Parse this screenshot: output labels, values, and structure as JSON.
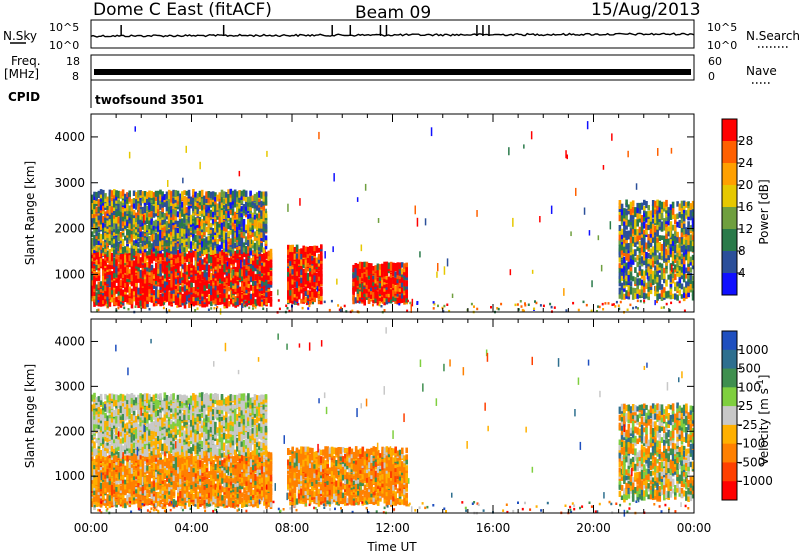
{
  "header": {
    "station": "Dome C East (fitACF)",
    "beam": "Beam 09",
    "date": "15/Aug/2013"
  },
  "top_panels": {
    "nsky_label": "N.Sky",
    "nsky_ticks": [
      "10^5",
      "10^0"
    ],
    "nsearch_label": "N.Search",
    "nsearch_ticks": [
      "10^5",
      "10^0"
    ],
    "freq_label": "Freq.",
    "freq_unit": "[MHz]",
    "freq_ticks": [
      "18",
      "8"
    ],
    "nave_label": "Nave",
    "nave_ticks": [
      "60",
      "0"
    ],
    "cpid_label": "CPID",
    "cpid_value": "twofsound 3501"
  },
  "chart_data": [
    {
      "type": "heatmap",
      "panel": "power",
      "ylabel": "Slant Range [km]",
      "xlabel": "Time UT",
      "x_ticks": [
        "00:00",
        "04:00",
        "08:00",
        "12:00",
        "16:00",
        "20:00",
        "00:00"
      ],
      "xlim_hours": [
        0,
        24
      ],
      "y_ticks": [
        1000,
        2000,
        3000,
        4000
      ],
      "ylim_km": [
        180,
        4500
      ],
      "colorbar": {
        "label": "Power [dB]",
        "tick_labels": [
          "28",
          "24",
          "20",
          "16",
          "12",
          "8",
          "4"
        ],
        "colors": [
          "#ff0000",
          "#ff6000",
          "#ffa000",
          "#e6c800",
          "#6f9f3f",
          "#2a7a4a",
          "#2b4f9a",
          "#1010ff"
        ]
      },
      "echo_regions": [
        {
          "t_start": 0.0,
          "t_end": 7.2,
          "r_min": 350,
          "r_max": 1500,
          "dominant": "high-power (24-28 dB)"
        },
        {
          "t_start": 0.0,
          "t_end": 7.0,
          "r_min": 1500,
          "r_max": 2800,
          "dominant": "mixed (4-20 dB)"
        },
        {
          "t_start": 7.8,
          "t_end": 9.2,
          "r_min": 400,
          "r_max": 1600,
          "dominant": "high-power (24-28 dB)"
        },
        {
          "t_start": 10.4,
          "t_end": 12.6,
          "r_min": 400,
          "r_max": 1200,
          "dominant": "high-power (24-28 dB)"
        },
        {
          "t_start": 21.0,
          "t_end": 24.0,
          "r_min": 500,
          "r_max": 2600,
          "dominant": "mixed (8-28 dB)"
        }
      ]
    },
    {
      "type": "heatmap",
      "panel": "velocity",
      "ylabel": "Slant Range [km]",
      "xlabel": "Time UT",
      "x_ticks": [
        "00:00",
        "04:00",
        "08:00",
        "12:00",
        "16:00",
        "20:00",
        "00:00"
      ],
      "xlim_hours": [
        0,
        24
      ],
      "y_ticks": [
        1000,
        2000,
        3000,
        4000
      ],
      "ylim_km": [
        180,
        4500
      ],
      "colorbar": {
        "label": "Velocity [m s",
        "label_superscript": "-1",
        "label_close": "]",
        "tick_labels": [
          "1000",
          "500",
          "100",
          "25",
          "-25",
          "-100",
          "-500",
          "-1000"
        ],
        "colors": [
          "#1f4fbf",
          "#2e6f8f",
          "#3f8f4f",
          "#7fcf3f",
          "#c8c8c8",
          "#ffb000",
          "#ff8000",
          "#ff4000",
          "#ff0000"
        ]
      },
      "echo_regions": [
        {
          "t_start": 0.0,
          "t_end": 7.2,
          "r_min": 350,
          "r_max": 1500,
          "dominant": "negative (-100 to -500 m/s)"
        },
        {
          "t_start": 0.0,
          "t_end": 7.0,
          "r_min": 1500,
          "r_max": 2800,
          "dominant": "near zero (-25 to 25 m/s)"
        },
        {
          "t_start": 7.8,
          "t_end": 12.6,
          "r_min": 400,
          "r_max": 1600,
          "dominant": "negative (-100 to -500 m/s)"
        },
        {
          "t_start": 21.0,
          "t_end": 24.0,
          "r_min": 500,
          "r_max": 2600,
          "dominant": "mixed (-500 to 100 m/s)"
        }
      ]
    }
  ]
}
